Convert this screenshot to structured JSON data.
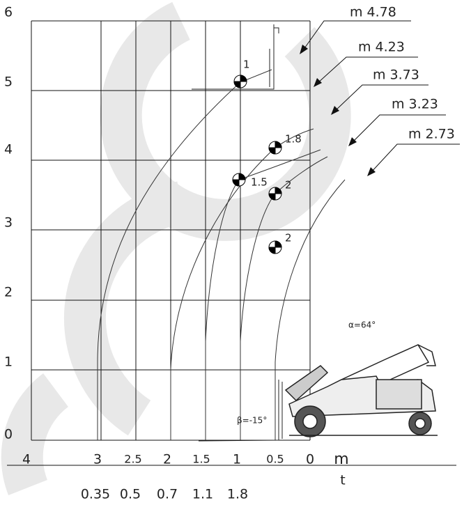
{
  "y_axis": {
    "labels": [
      "6",
      "5",
      "4",
      "3",
      "2",
      "1",
      "0"
    ]
  },
  "x_axis": {
    "labels": [
      "4",
      "3",
      "2.5",
      "2",
      "1.5",
      "1",
      "0.5",
      "0"
    ],
    "unit": "m"
  },
  "load_axis": {
    "labels": [
      "0.35",
      "0.5",
      "0.7",
      "1.1",
      "1.8"
    ],
    "unit": "t"
  },
  "curves": [
    {
      "label": "m 4.78"
    },
    {
      "label": "m 4.23"
    },
    {
      "label": "m 3.73"
    },
    {
      "label": "m 3.23"
    },
    {
      "label": "m 2.73"
    }
  ],
  "points": [
    {
      "label": "1"
    },
    {
      "label": "1.8"
    },
    {
      "label": "1.5"
    },
    {
      "label": "2"
    },
    {
      "label": "2"
    }
  ],
  "annotations": {
    "alpha": "α=64°",
    "beta": "β=-15°"
  }
}
